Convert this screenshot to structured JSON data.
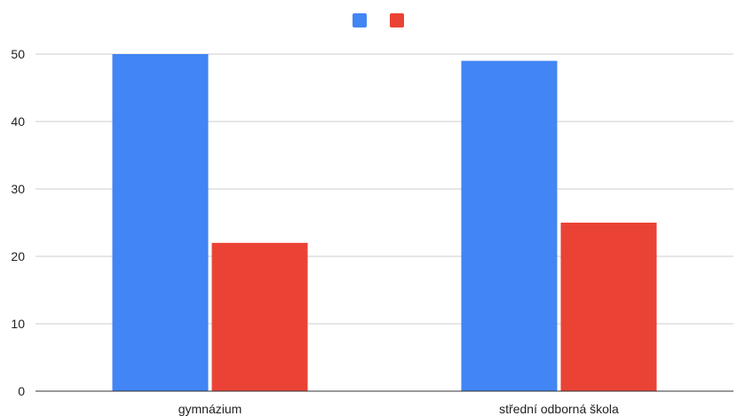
{
  "chart_data": {
    "type": "bar",
    "categories": [
      "gymnázium",
      "střední odborná škola"
    ],
    "series": [
      {
        "values": [
          50,
          49
        ],
        "color": "#4285f4"
      },
      {
        "values": [
          22,
          25
        ],
        "color": "#ea4335"
      }
    ],
    "yticks": [
      0,
      10,
      20,
      30,
      40,
      50
    ],
    "ylim": [
      0,
      50
    ],
    "grid": true,
    "legend": "top-center"
  }
}
